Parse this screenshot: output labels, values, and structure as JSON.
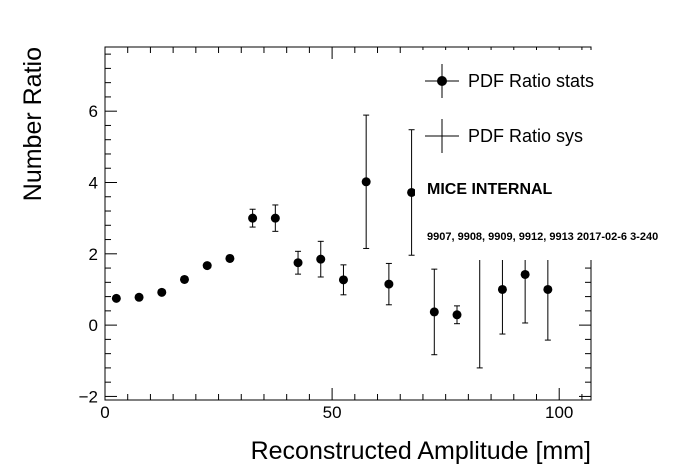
{
  "chart_data": {
    "type": "scatter",
    "xlabel": "Reconstructed Amplitude [mm]",
    "ylabel": "Number Ratio",
    "xlim": [
      0,
      107
    ],
    "ylim": [
      -2.1,
      7.8
    ],
    "x_ticks": [
      0,
      50,
      100
    ],
    "y_ticks": [
      -2,
      0,
      2,
      4,
      6
    ],
    "x_tick_labels": [
      "0",
      "50",
      "100"
    ],
    "y_tick_labels": [
      "−2",
      "0",
      "2",
      "4",
      "6"
    ],
    "grid": false,
    "legend_position": "top-right",
    "series": [
      {
        "name": "PDF Ratio stats",
        "marker": "circle",
        "points": [
          {
            "x": 2.5,
            "y": 0.75,
            "err": 0.05
          },
          {
            "x": 7.5,
            "y": 0.78,
            "err": 0.05
          },
          {
            "x": 12.5,
            "y": 0.92,
            "err": 0.05
          },
          {
            "x": 17.5,
            "y": 1.28,
            "err": 0.06
          },
          {
            "x": 22.5,
            "y": 1.67,
            "err": 0.07
          },
          {
            "x": 27.5,
            "y": 1.87,
            "err": 0.08
          },
          {
            "x": 32.5,
            "y": 3.0,
            "err": 0.25
          },
          {
            "x": 37.5,
            "y": 3.0,
            "err": 0.37
          },
          {
            "x": 42.5,
            "y": 1.75,
            "err": 0.32
          },
          {
            "x": 47.5,
            "y": 1.85,
            "err": 0.5
          },
          {
            "x": 52.5,
            "y": 1.27,
            "err": 0.42
          },
          {
            "x": 57.5,
            "y": 4.02,
            "err": 1.87
          },
          {
            "x": 62.5,
            "y": 1.15,
            "err": 0.58
          },
          {
            "x": 67.5,
            "y": 3.72,
            "err": 1.76
          },
          {
            "x": 72.5,
            "y": 0.37,
            "err": 1.2
          },
          {
            "x": 77.5,
            "y": 0.29,
            "err": 0.25
          },
          {
            "x": 82.5,
            "y": 2.3,
            "err": 3.5
          },
          {
            "x": 87.5,
            "y": 1.0,
            "err": 1.25
          },
          {
            "x": 92.5,
            "y": 1.42,
            "err": 1.36
          },
          {
            "x": 97.5,
            "y": 1.0,
            "err": 1.42
          }
        ]
      },
      {
        "name": "PDF Ratio sys",
        "marker": "none",
        "points": []
      }
    ],
    "annotations": [
      "MICE INTERNAL",
      "9907, 9908, 9909, 9912, 9913 2017-02-6 3-240"
    ]
  },
  "colors": {
    "markers": "#000000",
    "legend_background": "#ffffff",
    "background": "#ffffff"
  }
}
